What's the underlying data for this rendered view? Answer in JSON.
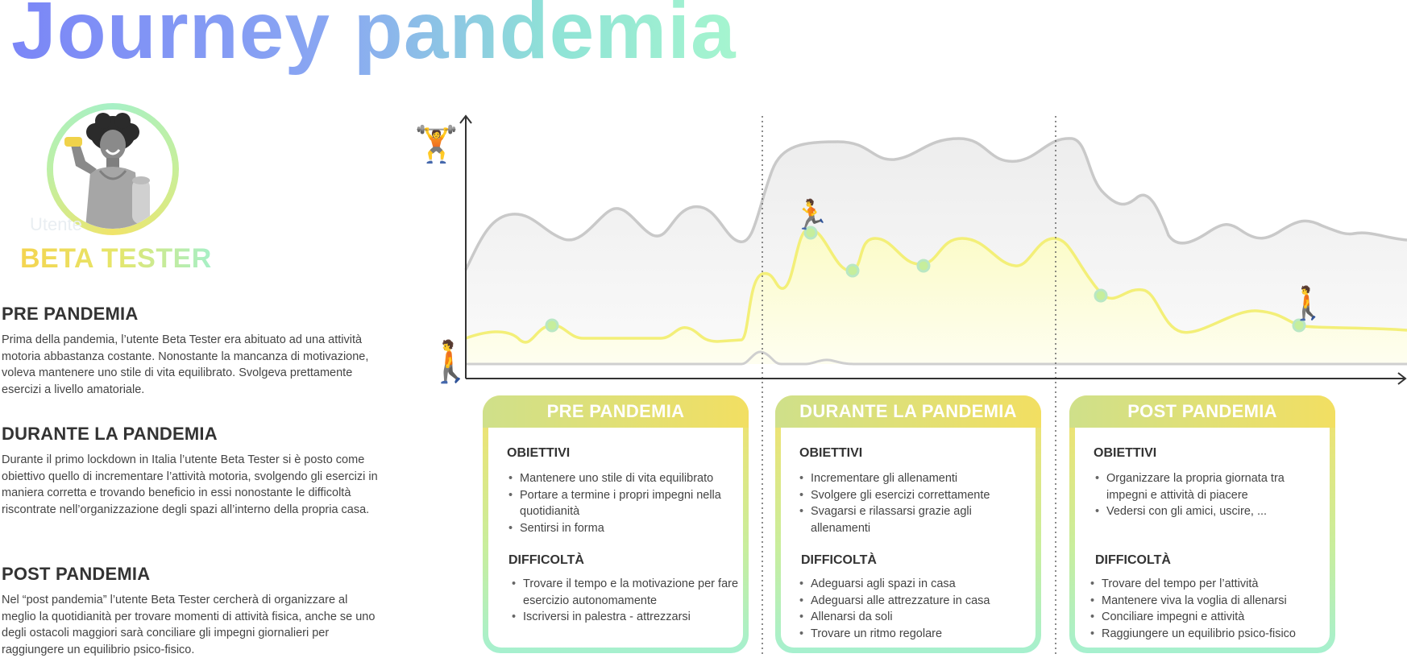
{
  "title": "Journey pandemia",
  "persona": {
    "type_label": "Utente",
    "name": "BETA TESTER"
  },
  "phases_text": [
    {
      "heading": "PRE PANDEMIA",
      "body": "Prima della pandemia, l’utente Beta Tester era abituato ad una attività motoria abbastanza costante. Nonostante la mancanza di motivazione, voleva mantenere uno stile di vita equilibrato. Svolgeva prettamente esercizi a livello amatoriale."
    },
    {
      "heading": "DURANTE LA PANDEMIA",
      "body": "Durante il primo lockdown in Italia l’utente Beta Tester si è posto come obiettivo quello di incrementare l’attività motoria, svolgendo gli esercizi in maniera corretta e trovando beneficio in essi nonostante le difficoltà riscontrate nell’organizzazione degli spazi all’interno della propria casa."
    },
    {
      "heading": "POST PANDEMIA",
      "body": "Nel “post pandemia” l’utente Beta Tester cercherà di organizzare al meglio la quotidianità per trovare momenti di attività fisica, anche se uno degli ostacoli maggiori sarà conciliare gli impegni giornalieri per raggiungere un equilibrio psico-fisico."
    }
  ],
  "chart": {
    "axis_icon_top": "🏋️",
    "axis_icon_bottom": "🚶",
    "milestone_icons": [
      "🏃",
      "🚶"
    ],
    "colors": {
      "upper_line": "#c9c9c9",
      "upper_fill": "#f1f1f1",
      "lower_line": "#f3ef78",
      "lower_fill": "#fcfcd4",
      "marker_fill": "#c6ee9c",
      "marker_stroke": "#b9e7c4",
      "axis": "#333333",
      "divider": "#666666"
    }
  },
  "cards": [
    {
      "header": "PRE PANDEMIA",
      "objectives_title": "OBIETTIVI",
      "objectives": [
        "Mantenere uno stile di vita equilibrato",
        "Portare a termine i propri impegni nella quotidianità",
        "Sentirsi in forma"
      ],
      "difficulties_title": "DIFFICOLTÀ",
      "difficulties": [
        "Trovare il tempo e la motivazione per fare esercizio autonomamente",
        "Iscriversi in palestra - attrezzarsi"
      ]
    },
    {
      "header": "DURANTE LA PANDEMIA",
      "objectives_title": "OBIETTIVI",
      "objectives": [
        "Incrementare gli allenamenti",
        "Svolgere gli esercizi correttamente",
        "Svagarsi e rilassarsi grazie agli allenamenti"
      ],
      "difficulties_title": "DIFFICOLTÀ",
      "difficulties": [
        "Adeguarsi agli spazi in casa",
        "Adeguarsi alle attrezzature in casa",
        "Allenarsi da soli",
        "Trovare un ritmo regolare"
      ]
    },
    {
      "header": "POST PANDEMIA",
      "objectives_title": "OBIETTIVI",
      "objectives": [
        "Organizzare la propria giornata tra impegni e attività di piacere",
        "Vedersi con gli amici, uscire, ..."
      ],
      "difficulties_title": "DIFFICOLTÀ",
      "difficulties": [
        "Trovare del tempo per l’attività",
        "Mantenere viva la voglia di allenarsi",
        "Conciliare impegni e attività",
        "Raggiungere un equilibrio psico-fisico"
      ]
    }
  ]
}
